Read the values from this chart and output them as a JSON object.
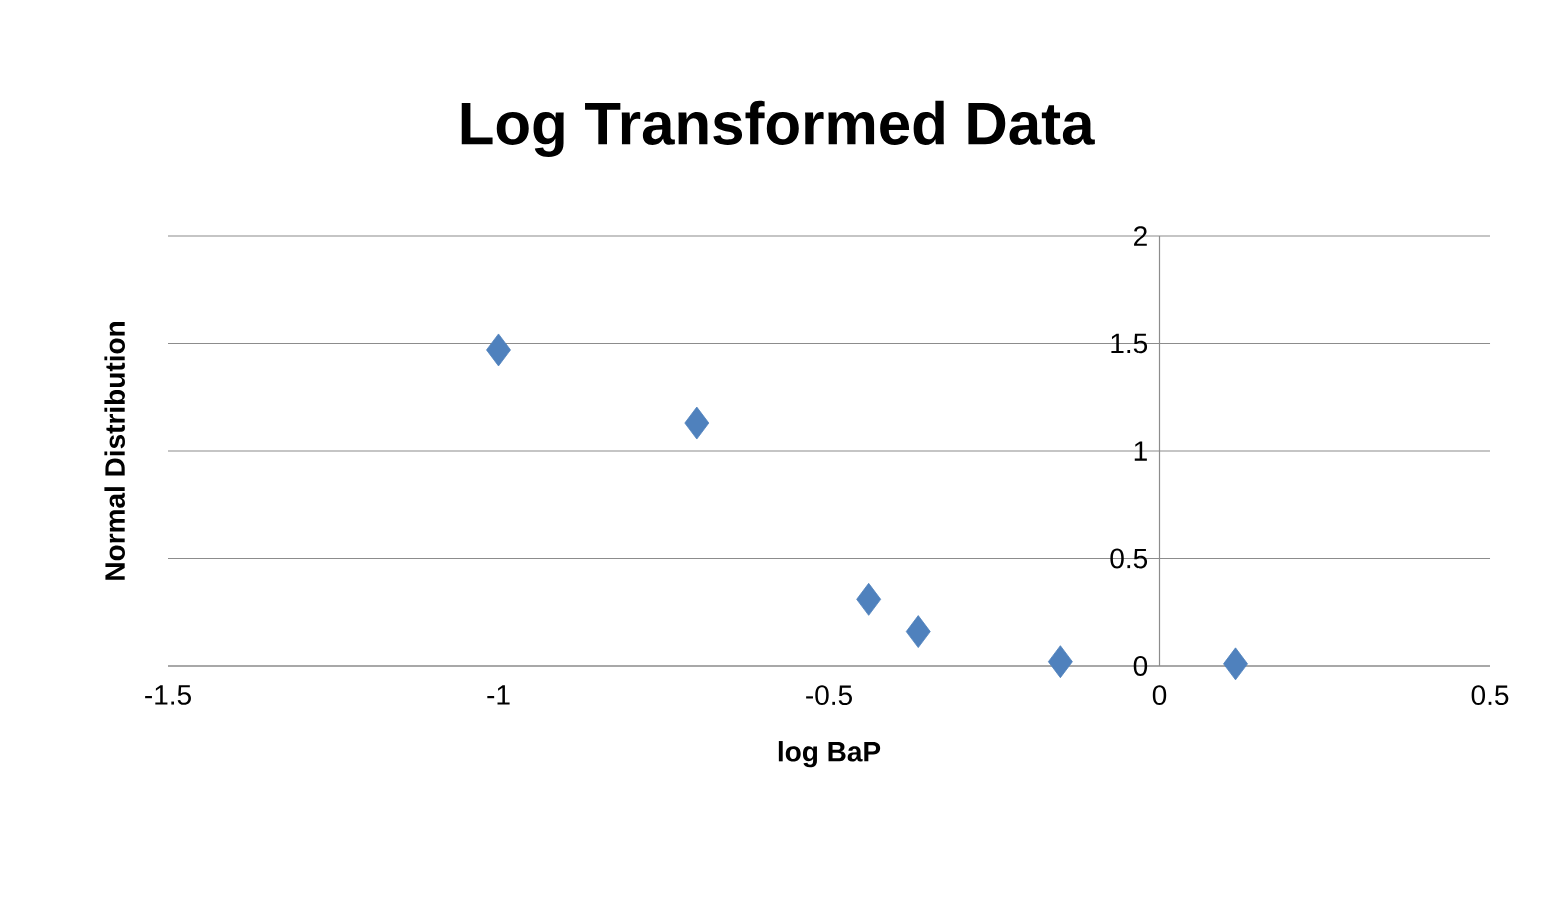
{
  "chart_data": {
    "type": "scatter",
    "title": "Log Transformed Data",
    "xlabel": "log BaP",
    "ylabel": "Normal Distribution",
    "x": [
      -1.0,
      -0.7,
      -0.44,
      -0.365,
      -0.15,
      0.115
    ],
    "series": [
      {
        "color": "#4f81bd",
        "values": [
          1.47,
          1.13,
          0.31,
          0.16,
          0.02,
          0.01
        ]
      }
    ],
    "xlim": [
      -1.5,
      0.5
    ],
    "ylim": [
      0,
      2
    ],
    "xticks": [
      -1.5,
      -1,
      -0.5,
      0,
      0.5
    ],
    "yticks": [
      0,
      0.5,
      1,
      1.5,
      2
    ],
    "grid": "y",
    "marker": "diamond"
  }
}
